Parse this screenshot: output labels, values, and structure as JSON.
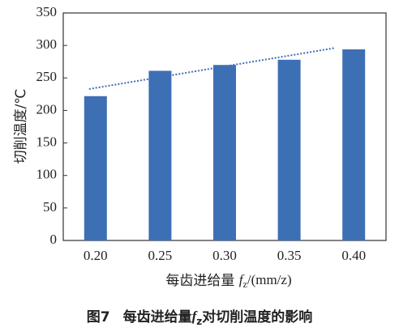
{
  "chart_data": {
    "type": "bar",
    "categories": [
      "0.20",
      "0.25",
      "0.30",
      "0.35",
      "0.40"
    ],
    "values": [
      222,
      261,
      270,
      278,
      294
    ],
    "color": "#3d6fb4",
    "ylim": [
      0,
      350
    ],
    "yticks": [
      0,
      50,
      100,
      150,
      200,
      250,
      300,
      350
    ],
    "trendline": {
      "values": [
        233,
        296
      ],
      "color": "#3d6fb4"
    },
    "ylabel": "切削温度/℃",
    "xlabel": {
      "prefix": "每齿进给量 ",
      "symbol": "f",
      "subscript": "z",
      "unit": "/(mm/z)"
    },
    "caption": {
      "figure": "图7",
      "prefix": "每齿进给量",
      "symbol": "f",
      "subscript": "z",
      "suffix": "对切削温度的影响"
    }
  }
}
